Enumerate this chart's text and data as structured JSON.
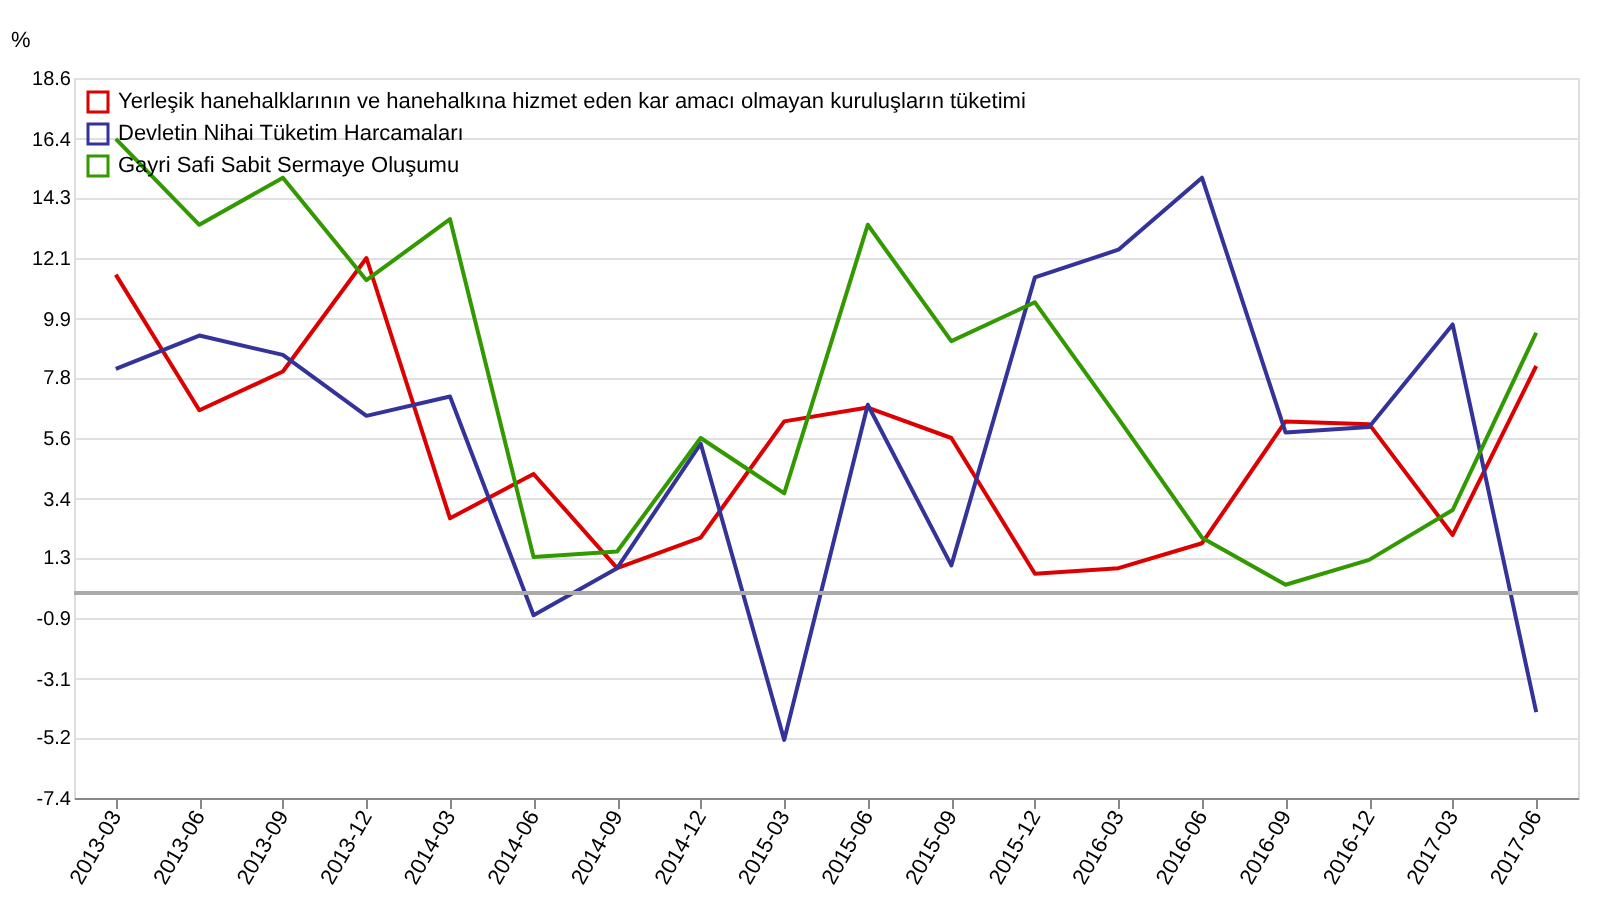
{
  "chart_data": {
    "type": "line",
    "ylabel": "%",
    "categories": [
      "2013-03",
      "2013-06",
      "2013-09",
      "2013-12",
      "2014-03",
      "2014-06",
      "2014-09",
      "2014-12",
      "2015-03",
      "2015-06",
      "2015-09",
      "2015-12",
      "2016-03",
      "2016-06",
      "2016-09",
      "2016-12",
      "2017-03",
      "2017-06"
    ],
    "series": [
      {
        "name": "Yerleşik hanehalklarının ve hanehalkına hizmet eden kar amacı olmayan kuruluşların tüketimi",
        "color": "#dd0000",
        "values": [
          11.5,
          6.6,
          8.0,
          12.1,
          2.7,
          4.3,
          0.9,
          2.0,
          6.2,
          6.7,
          5.6,
          0.7,
          0.9,
          1.8,
          6.2,
          6.1,
          2.1,
          8.2
        ]
      },
      {
        "name": "Devletin Nihai Tüketim Harcamaları",
        "color": "#333399",
        "values": [
          8.1,
          9.3,
          8.6,
          6.4,
          7.1,
          -0.8,
          0.9,
          5.4,
          -5.3,
          6.8,
          1.0,
          11.4,
          12.4,
          15.0,
          5.8,
          6.0,
          9.7,
          -4.3
        ]
      },
      {
        "name": "Gayri Safi Sabit Sermaye Oluşumu",
        "color": "#339900",
        "values": [
          16.4,
          13.3,
          15.0,
          11.3,
          13.5,
          1.3,
          1.5,
          5.6,
          3.6,
          13.3,
          9.1,
          10.5,
          6.3,
          2.0,
          0.3,
          1.2,
          3.0,
          9.4
        ]
      }
    ],
    "ylim": [
      -7.4,
      18.6
    ],
    "yticks": [
      -7.4,
      -5.2,
      -3.1,
      -0.9,
      1.3,
      3.4,
      5.6,
      7.8,
      9.9,
      12.1,
      14.3,
      16.4,
      18.6
    ],
    "grid": "y",
    "legend": "top left",
    "marker": "none",
    "line_style": "solid",
    "ref_lines": [
      {
        "axis": "y",
        "value": 0,
        "color": "#aaaaaa"
      }
    ]
  }
}
